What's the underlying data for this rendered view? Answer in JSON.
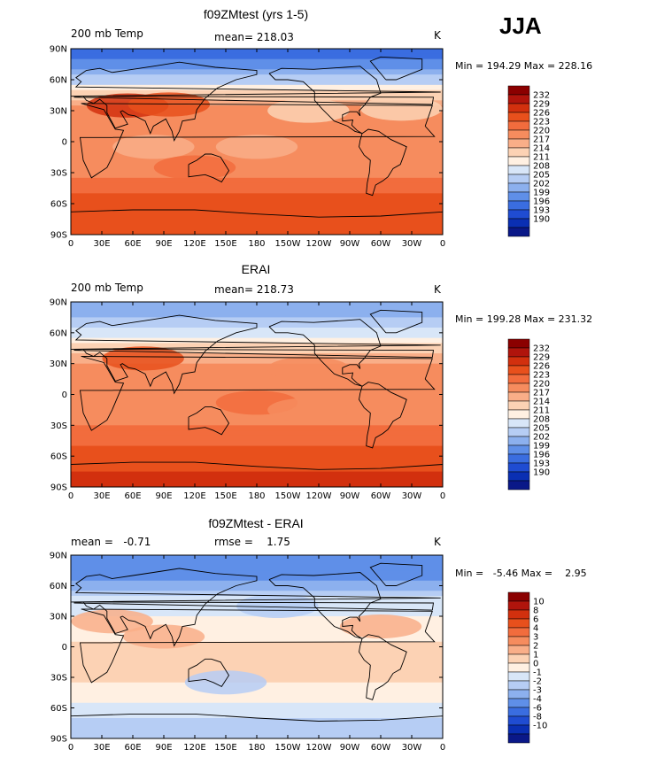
{
  "season": "JJA",
  "chart_data": [
    {
      "type": "heatmap",
      "title": "f09ZMtest (yrs 1-5)",
      "left_label": "200 mb Temp",
      "center_label": "mean= 218.03",
      "units": "K",
      "min_max": "Min = 194.29 Max = 228.16",
      "x_ticks": [
        "0",
        "30E",
        "60E",
        "90E",
        "120E",
        "150E",
        "180",
        "150W",
        "120W",
        "90W",
        "60W",
        "30W",
        "0"
      ],
      "y_ticks": [
        "90N",
        "60N",
        "30N",
        "0",
        "30S",
        "60S",
        "90S"
      ],
      "levels": [
        "232",
        "229",
        "226",
        "223",
        "220",
        "217",
        "214",
        "211",
        "208",
        "205",
        "202",
        "199",
        "196",
        "193",
        "190"
      ],
      "colors": [
        "#8b0000",
        "#b0140c",
        "#d2300e",
        "#e8501c",
        "#f26c3d",
        "#f68c5e",
        "#f9ae88",
        "#fcd2b4",
        "#fff0e2",
        "#d8e6f8",
        "#b6cdf4",
        "#8cb0ee",
        "#5f8fe8",
        "#3a6de0",
        "#1f4cd2",
        "#0a2fb3",
        "#0a1888"
      ],
      "zonal_profile": [
        193,
        197,
        203,
        213,
        218,
        220,
        219,
        218,
        219,
        222,
        224,
        225,
        225
      ],
      "blobs": [
        {
          "lon": 55,
          "lat": 35,
          "value": 227
        },
        {
          "lon": 95,
          "lat": 36,
          "value": 225
        },
        {
          "lon": 230,
          "lat": 30,
          "value": 213
        },
        {
          "lon": 320,
          "lat": 32,
          "value": 213
        },
        {
          "lon": 80,
          "lat": -5,
          "value": 216
        },
        {
          "lon": 180,
          "lat": -5,
          "value": 216
        },
        {
          "lon": 120,
          "lat": -25,
          "value": 221
        }
      ]
    },
    {
      "type": "heatmap",
      "title": "ERAI",
      "left_label": "200 mb Temp",
      "center_label": "mean= 218.73",
      "units": "K",
      "min_max": "Min = 199.28 Max = 231.32",
      "x_ticks": [
        "0",
        "30E",
        "60E",
        "90E",
        "120E",
        "150E",
        "180",
        "150W",
        "120W",
        "90W",
        "60W",
        "30W",
        "0"
      ],
      "y_ticks": [
        "90N",
        "60N",
        "30N",
        "0",
        "30S",
        "60S",
        "90S"
      ],
      "levels": [
        "232",
        "229",
        "226",
        "223",
        "220",
        "217",
        "214",
        "211",
        "208",
        "205",
        "202",
        "199",
        "196",
        "193",
        "190"
      ],
      "colors": [
        "#8b0000",
        "#b0140c",
        "#d2300e",
        "#e8501c",
        "#f26c3d",
        "#f68c5e",
        "#f9ae88",
        "#fcd2b4",
        "#fff0e2",
        "#d8e6f8",
        "#b6cdf4",
        "#8cb0ee",
        "#5f8fe8",
        "#3a6de0",
        "#1f4cd2",
        "#0a2fb3",
        "#0a1888"
      ],
      "zonal_profile": [
        200,
        202,
        206,
        213,
        217,
        219,
        219,
        219,
        220,
        222,
        225,
        226,
        228
      ],
      "blobs": [
        {
          "lon": 70,
          "lat": 35,
          "value": 223
        },
        {
          "lon": 230,
          "lat": 25,
          "value": 218
        },
        {
          "lon": 180,
          "lat": -8,
          "value": 220
        },
        {
          "lon": 230,
          "lat": -15,
          "value": 217
        }
      ]
    },
    {
      "type": "heatmap",
      "title": "f09ZMtest - ERAI",
      "left_label": "mean =   -0.71",
      "center_label": "rmse =    1.75",
      "units": "K",
      "min_max": "Min =   -5.46 Max =    2.95",
      "x_ticks": [
        "0",
        "30E",
        "60E",
        "90E",
        "120E",
        "150E",
        "180",
        "150W",
        "120W",
        "90W",
        "60W",
        "30W",
        "0"
      ],
      "y_ticks": [
        "90N",
        "60N",
        "30N",
        "0",
        "30S",
        "60S",
        "90S"
      ],
      "levels": [
        "10",
        "8",
        "6",
        "4",
        "3",
        "2",
        "1",
        "0",
        "-1",
        "-2",
        "-3",
        "-4",
        "-6",
        "-8",
        "-10"
      ],
      "colors": [
        "#8b0000",
        "#b0140c",
        "#d2300e",
        "#e8501c",
        "#f26c3d",
        "#f68c5e",
        "#f9ae88",
        "#fcd2b4",
        "#fff0e2",
        "#d8e6f8",
        "#b6cdf4",
        "#8cb0ee",
        "#5f8fe8",
        "#3a6de0",
        "#1f4cd2",
        "#0a2fb3",
        "#0a1888"
      ],
      "zonal_profile": [
        -5,
        -5,
        -3.5,
        -1.5,
        -1,
        -0.5,
        0.3,
        0.3,
        0.2,
        -0.5,
        -1.5,
        -2.5,
        -3
      ],
      "blobs": [
        {
          "lon": 40,
          "lat": 25,
          "value": 1.5
        },
        {
          "lon": 90,
          "lat": 10,
          "value": 1.2
        },
        {
          "lon": 300,
          "lat": 20,
          "value": 1.2
        },
        {
          "lon": 150,
          "lat": -35,
          "value": -2.5
        },
        {
          "lon": 200,
          "lat": 40,
          "value": -2.5
        }
      ]
    }
  ]
}
